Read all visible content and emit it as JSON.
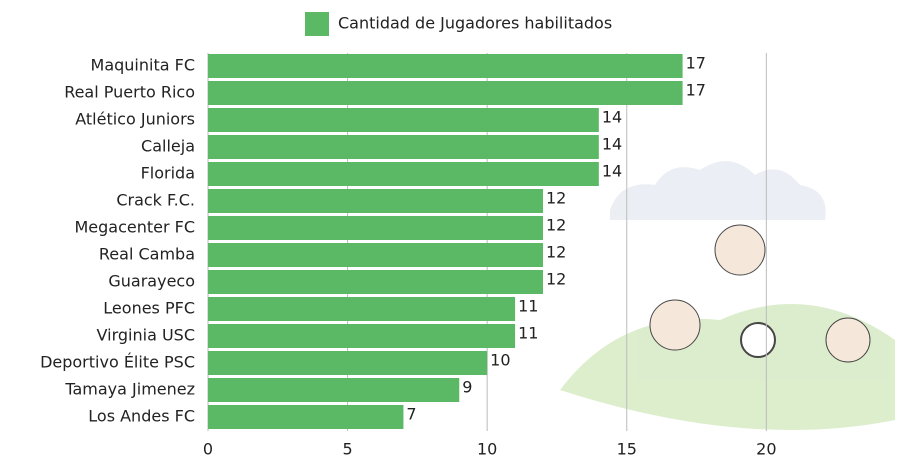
{
  "chart_data": {
    "type": "bar",
    "orientation": "horizontal",
    "legend_label": "Cantidad de Jugadores habilitados",
    "categories": [
      "Maquinita FC",
      "Real Puerto Rico",
      "Atlético Juniors",
      "Calleja",
      "Florida",
      "Crack F.C.",
      "Megacenter FC",
      "Real Camba",
      "Guarayeco",
      "Leones PFC",
      "Virginia USC",
      "Deportivo Élite PSC",
      "Tamaya Jimenez",
      "Los Andes FC"
    ],
    "values": [
      17,
      17,
      14,
      14,
      14,
      12,
      12,
      12,
      12,
      11,
      11,
      10,
      9,
      7
    ],
    "color": "#5bb865",
    "xlim": [
      0,
      24
    ],
    "xticks": [
      0,
      5,
      10,
      15,
      20
    ],
    "grid": true
  }
}
